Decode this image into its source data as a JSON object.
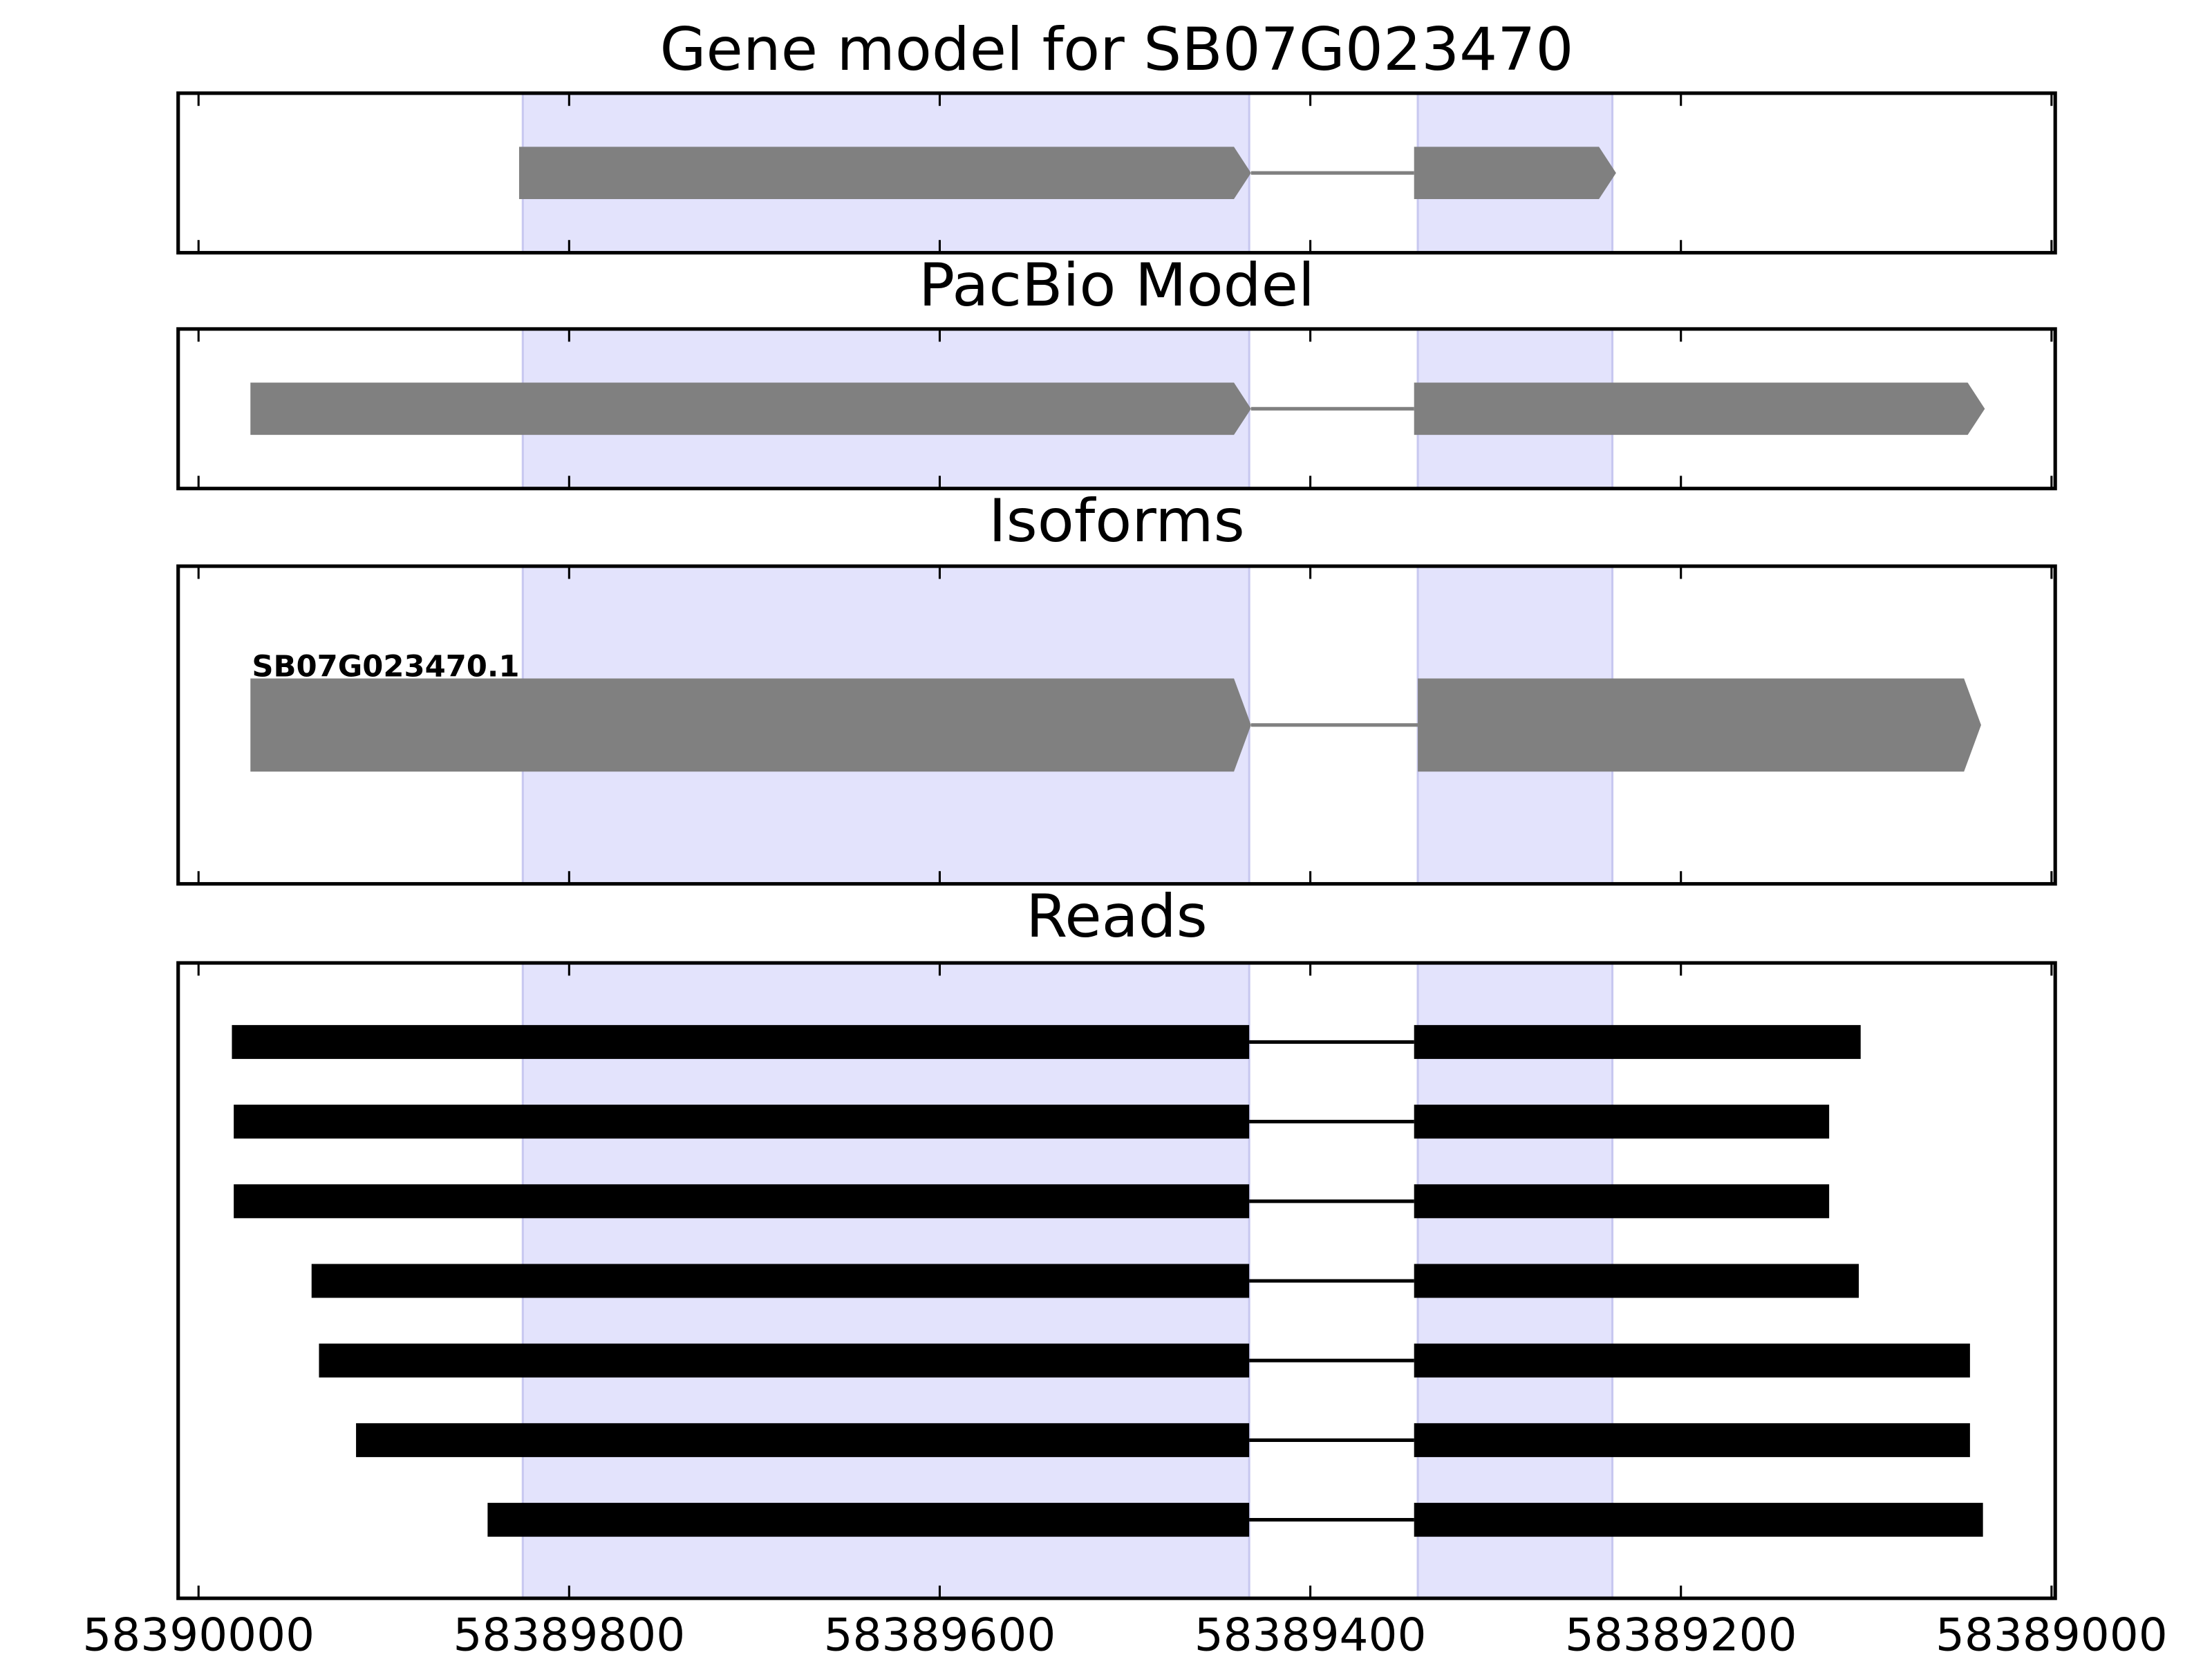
{
  "chart_data": [
    {
      "type": "track",
      "title": "Gene model for SB07G023470",
      "xlim": [
        58390011,
        58388998
      ],
      "xticks": [
        58390000,
        58389800,
        58389600,
        58389400,
        58389200,
        58389000
      ],
      "regions": [
        [
          58389825,
          58389433
        ],
        [
          58389342,
          58389237
        ]
      ],
      "region_color": "#e3e3fc",
      "color": "#808080",
      "rows": [
        {
          "exons": [
            [
              58389827,
              58389432
            ],
            [
              58389344,
              58389235
            ]
          ]
        }
      ]
    },
    {
      "type": "track",
      "title": "PacBio Model",
      "xlim": [
        58390011,
        58388998
      ],
      "xticks": [
        58390000,
        58389800,
        58389600,
        58389400,
        58389200,
        58389000
      ],
      "regions": [
        [
          58389825,
          58389433
        ],
        [
          58389342,
          58389237
        ]
      ],
      "region_color": "#e3e3fc",
      "color": "#808080",
      "rows": [
        {
          "exons": [
            [
              58389972,
              58389432
            ],
            [
              58389344,
              58389036
            ]
          ]
        }
      ]
    },
    {
      "type": "track",
      "title": "Isoforms",
      "xlim": [
        58390011,
        58388998
      ],
      "xticks": [
        58390000,
        58389800,
        58389600,
        58389400,
        58389200,
        58389000
      ],
      "regions": [
        [
          58389825,
          58389433
        ],
        [
          58389342,
          58389237
        ]
      ],
      "region_color": "#e3e3fc",
      "color": "#808080",
      "rows": [
        {
          "name": "SB07G023470.1",
          "exons": [
            [
              58389972,
              58389432
            ],
            [
              58389342,
              58389038
            ]
          ]
        }
      ]
    },
    {
      "type": "reads",
      "title": "Reads",
      "xlim": [
        58390011,
        58388998
      ],
      "xticks": [
        58390000,
        58389800,
        58389600,
        58389400,
        58389200,
        58389000
      ],
      "regions": [
        [
          58389825,
          58389433
        ],
        [
          58389342,
          58389237
        ]
      ],
      "region_color": "#e3e3fc",
      "color": "#000000",
      "rows": [
        {
          "exons": [
            [
              58389982,
              58389433
            ],
            [
              58389344,
              58389103
            ]
          ]
        },
        {
          "exons": [
            [
              58389981,
              58389433
            ],
            [
              58389344,
              58389120
            ]
          ]
        },
        {
          "exons": [
            [
              58389981,
              58389433
            ],
            [
              58389344,
              58389120
            ]
          ]
        },
        {
          "exons": [
            [
              58389939,
              58389433
            ],
            [
              58389344,
              58389104
            ]
          ]
        },
        {
          "exons": [
            [
              58389935,
              58389433
            ],
            [
              58389344,
              58389044
            ]
          ]
        },
        {
          "exons": [
            [
              58389915,
              58389433
            ],
            [
              58389344,
              58389044
            ]
          ]
        },
        {
          "exons": [
            [
              58389844,
              58389433
            ],
            [
              58389344,
              58389037
            ]
          ]
        }
      ]
    }
  ]
}
